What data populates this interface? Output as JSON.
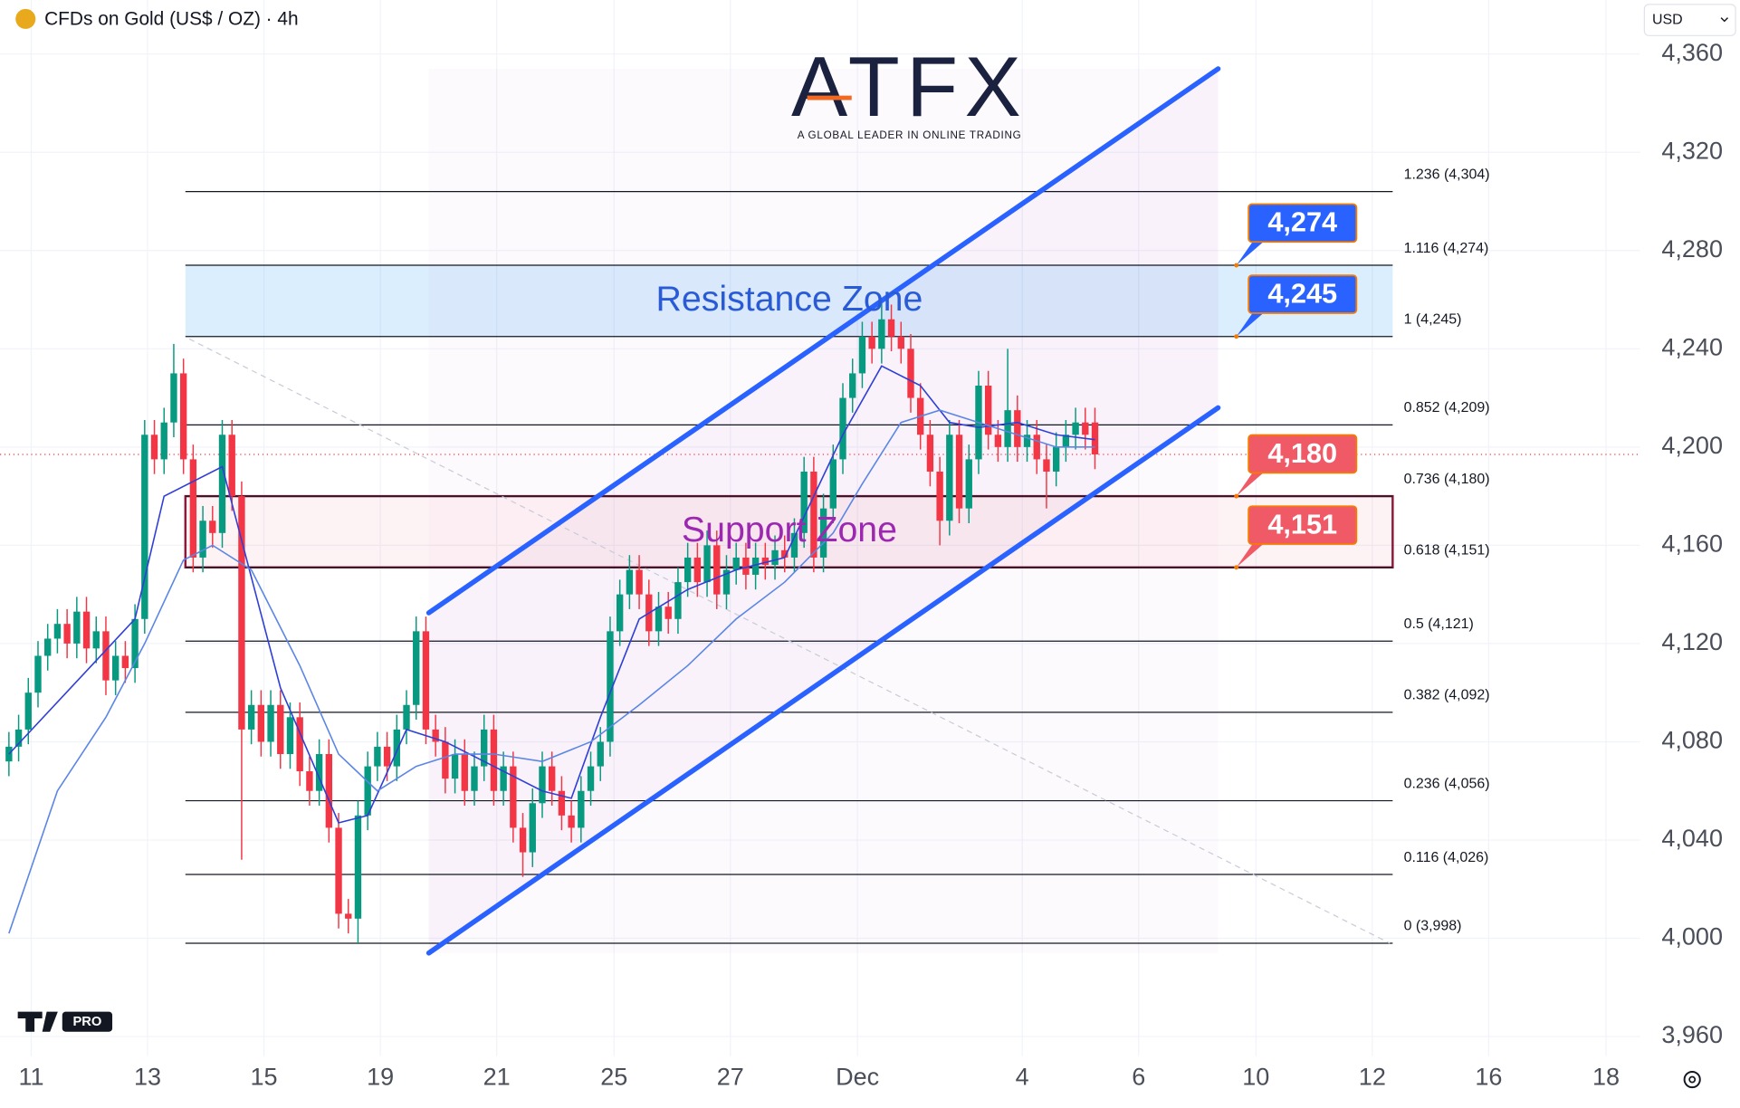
{
  "chart_data": {
    "type": "candlestick",
    "title": "CFDs on Gold (US$ / OZ) · 4h",
    "currency": "USD",
    "brand": "ATFX",
    "tagline": "A GLOBAL LEADER IN ONLINE TRADING",
    "badge": "PRO",
    "up_color": "#089981",
    "down_color": "#f23645",
    "open": [
      4072,
      4078,
      4085,
      4100,
      4115,
      4122,
      4128,
      4120,
      4133,
      4118,
      4125,
      4105,
      4115,
      4110,
      4130,
      4205,
      4195,
      4210,
      4230,
      4195,
      4155,
      4170,
      4165,
      4205,
      4180,
      4085,
      4095,
      4080,
      4095,
      4075,
      4090,
      4068,
      4060,
      4075,
      4045,
      4010,
      4008,
      4050,
      4070,
      4078,
      4070,
      4085,
      4095,
      4125,
      4085,
      4080,
      4065,
      4075,
      4060,
      4070,
      4085,
      4060,
      4070,
      4045,
      4035,
      4055,
      4070,
      4060,
      4050,
      4045,
      4060,
      4070,
      4080,
      4125,
      4140,
      4150,
      4140,
      4125,
      4135,
      4130,
      4145,
      4155,
      4145,
      4160,
      4140,
      4150,
      4155,
      4148,
      4155,
      4152,
      4158,
      4155,
      4165,
      4190,
      4155,
      4175,
      4195,
      4220,
      4230,
      4245,
      4240,
      4252,
      4245,
      4240,
      4220,
      4205,
      4190,
      4170,
      4205,
      4175,
      4195,
      4225,
      4205,
      4200,
      4215,
      4200,
      4205,
      4195,
      4190,
      4200,
      4205,
      4210,
      4210
    ],
    "high": [
      4084,
      4091,
      4106,
      4121,
      4128,
      4134,
      4134,
      4139,
      4139,
      4131,
      4131,
      4121,
      4121,
      4136,
      4211,
      4211,
      4216,
      4242,
      4236,
      4201,
      4176,
      4176,
      4211,
      4211,
      4186,
      4101,
      4101,
      4101,
      4101,
      4096,
      4096,
      4074,
      4081,
      4081,
      4051,
      4016,
      4056,
      4076,
      4084,
      4084,
      4091,
      4101,
      4131,
      4131,
      4091,
      4086,
      4081,
      4081,
      4076,
      4091,
      4091,
      4076,
      4076,
      4051,
      4061,
      4076,
      4076,
      4066,
      4056,
      4066,
      4076,
      4086,
      4131,
      4146,
      4156,
      4156,
      4146,
      4141,
      4141,
      4151,
      4161,
      4161,
      4166,
      4166,
      4156,
      4161,
      4161,
      4161,
      4161,
      4164,
      4164,
      4171,
      4196,
      4196,
      4181,
      4201,
      4226,
      4236,
      4251,
      4251,
      4260,
      4258,
      4251,
      4246,
      4226,
      4211,
      4196,
      4211,
      4211,
      4201,
      4231,
      4231,
      4211,
      4240,
      4221,
      4211,
      4211,
      4201,
      4206,
      4211,
      4216,
      4216,
      4216
    ],
    "low": [
      4066,
      4072,
      4079,
      4094,
      4109,
      4116,
      4114,
      4114,
      4112,
      4112,
      4099,
      4099,
      4104,
      4104,
      4124,
      4189,
      4189,
      4204,
      4189,
      4149,
      4149,
      4159,
      4159,
      4174,
      4032,
      4079,
      4074,
      4074,
      4069,
      4069,
      4062,
      4054,
      4054,
      4039,
      4004,
      4002,
      3998,
      4044,
      4064,
      4064,
      4064,
      4079,
      4089,
      4079,
      4074,
      4059,
      4059,
      4054,
      4054,
      4064,
      4054,
      4054,
      4039,
      4025,
      4029,
      4049,
      4054,
      4044,
      4039,
      4039,
      4054,
      4064,
      4074,
      4119,
      4134,
      4134,
      4119,
      4119,
      4124,
      4124,
      4139,
      4139,
      4139,
      4134,
      4134,
      4144,
      4142,
      4142,
      4146,
      4146,
      4149,
      4149,
      4159,
      4149,
      4149,
      4169,
      4189,
      4214,
      4224,
      4234,
      4234,
      4239,
      4234,
      4214,
      4199,
      4184,
      4160,
      4164,
      4169,
      4169,
      4189,
      4199,
      4194,
      4194,
      4194,
      4194,
      4189,
      4175,
      4184,
      4194,
      4199,
      4199,
      4191
    ],
    "close": [
      4078,
      4085,
      4100,
      4115,
      4122,
      4128,
      4120,
      4133,
      4118,
      4125,
      4105,
      4115,
      4110,
      4130,
      4205,
      4195,
      4210,
      4230,
      4195,
      4155,
      4170,
      4165,
      4205,
      4180,
      4085,
      4095,
      4080,
      4095,
      4075,
      4090,
      4068,
      4060,
      4075,
      4045,
      4010,
      4008,
      4050,
      4070,
      4078,
      4070,
      4085,
      4095,
      4125,
      4085,
      4080,
      4065,
      4075,
      4060,
      4070,
      4085,
      4060,
      4070,
      4045,
      4035,
      4055,
      4070,
      4060,
      4050,
      4045,
      4060,
      4070,
      4080,
      4125,
      4140,
      4150,
      4140,
      4125,
      4135,
      4130,
      4145,
      4155,
      4145,
      4160,
      4140,
      4150,
      4155,
      4148,
      4155,
      4152,
      4158,
      4155,
      4165,
      4190,
      4155,
      4175,
      4195,
      4220,
      4230,
      4245,
      4240,
      4252,
      4245,
      4240,
      4220,
      4205,
      4190,
      4170,
      4205,
      4175,
      4195,
      4225,
      4205,
      4200,
      4215,
      4200,
      4205,
      4195,
      4190,
      4200,
      4205,
      4210,
      4205,
      4197
    ],
    "indicators": [
      {
        "color": "#2f3fd6",
        "x": [
          0,
          13,
          16,
          22,
          28,
          34,
          37,
          41,
          45,
          50,
          55,
          58,
          61,
          65,
          70,
          75,
          80,
          83,
          86,
          90,
          94,
          97,
          100,
          104,
          108,
          112
        ],
        "values": [
          4075,
          4130,
          4180,
          4192,
          4102,
          4047,
          4050,
          4085,
          4080,
          4070,
          4060,
          4057,
          4090,
          4130,
          4142,
          4150,
          4155,
          4180,
          4205,
          4233,
          4225,
          4210,
          4208,
          4210,
          4205,
          4203
        ]
      },
      {
        "color": "#5b86e5",
        "x": [
          0,
          5,
          10,
          14,
          18,
          21,
          25,
          30,
          34,
          38,
          42,
          46,
          50,
          55,
          60,
          65,
          70,
          75,
          80,
          85,
          88,
          92,
          96,
          100,
          104,
          108,
          112
        ],
        "values": [
          4002,
          4060,
          4090,
          4120,
          4154,
          4160,
          4150,
          4111,
          4075,
          4060,
          4070,
          4075,
          4075,
          4072,
          4080,
          4095,
          4111,
          4130,
          4145,
          4165,
          4185,
          4210,
          4215,
          4210,
          4205,
          4200,
          4200
        ]
      }
    ],
    "fib": {
      "color": "#131722",
      "x_range": [
        18.2,
        142.7
      ],
      "levels": [
        {
          "value": 4304,
          "label": "1.236 (4,304)"
        },
        {
          "value": 4274,
          "label": "1.116 (4,274)"
        },
        {
          "value": 4245,
          "label": "1 (4,245)"
        },
        {
          "value": 4209,
          "label": "0.852 (4,209)"
        },
        {
          "value": 4180,
          "label": "0.736 (4,180)"
        },
        {
          "value": 4151,
          "label": "0.618 (4,151)"
        },
        {
          "value": 4121,
          "label": "0.5 (4,121)"
        },
        {
          "value": 4092,
          "label": "0.382 (4,092)"
        },
        {
          "value": 4056,
          "label": "0.236 (4,056)"
        },
        {
          "value": 4026,
          "label": "0.116 (4,026)"
        },
        {
          "value": 3998,
          "label": "0 (3,998)"
        }
      ]
    },
    "zones": [
      {
        "label": "Resistance Zone",
        "low": 4245,
        "high": 4274,
        "color": "#2a5bd7",
        "fill": "rgba(33,150,243,0.16)"
      },
      {
        "label": "Support Zone",
        "low": 4151,
        "high": 4180,
        "color": "#9c27b0",
        "fill": "rgba(242,54,69,0.06)",
        "border": "#8b1a3a"
      }
    ],
    "price_tags": [
      {
        "value": 4274,
        "label": "4,274",
        "color": "#2962ff"
      },
      {
        "value": 4245,
        "label": "4,245",
        "color": "#2962ff"
      },
      {
        "value": 4180,
        "label": "4,180",
        "color": "#f05a66"
      },
      {
        "value": 4151,
        "label": "4,151",
        "color": "#f05a66"
      }
    ],
    "channel": {
      "color": "#2962ff",
      "x": [
        43.3,
        124.7
      ],
      "upper": [
        4132.5,
        4354
      ],
      "lower": [
        3994,
        4216
      ]
    },
    "trendline": {
      "color": "#c8ccd6",
      "x": [
        18.6,
        142.4
      ],
      "values": [
        4244,
        3998
      ]
    },
    "xlim": [
      -0.92,
      168.2
    ],
    "ylim": [
      3952,
      4382
    ],
    "xticks": [
      {
        "value": 2.3,
        "label": "11"
      },
      {
        "value": 14.3,
        "label": "13"
      },
      {
        "value": 26.3,
        "label": "15"
      },
      {
        "value": 38.3,
        "label": "19"
      },
      {
        "value": 50.3,
        "label": "21"
      },
      {
        "value": 62.4,
        "label": "25"
      },
      {
        "value": 74.4,
        "label": "27"
      },
      {
        "value": 87.5,
        "label": "Dec"
      },
      {
        "value": 104.5,
        "label": "4"
      },
      {
        "value": 116.5,
        "label": "6"
      },
      {
        "value": 128.6,
        "label": "10"
      },
      {
        "value": 140.6,
        "label": "12"
      },
      {
        "value": 152.6,
        "label": "16"
      },
      {
        "value": 164.7,
        "label": "18"
      }
    ],
    "yticks": [
      {
        "value": 3960,
        "label": "3,960"
      },
      {
        "value": 4000,
        "label": "4,000"
      },
      {
        "value": 4040,
        "label": "4,040"
      },
      {
        "value": 4080,
        "label": "4,080"
      },
      {
        "value": 4120,
        "label": "4,120"
      },
      {
        "value": 4160,
        "label": "4,160"
      },
      {
        "value": 4200,
        "label": "4,200"
      },
      {
        "value": 4240,
        "label": "4,240"
      },
      {
        "value": 4280,
        "label": "4,280"
      },
      {
        "value": 4320,
        "label": "4,320"
      },
      {
        "value": 4360,
        "label": "4,360"
      }
    ],
    "grid": true
  }
}
